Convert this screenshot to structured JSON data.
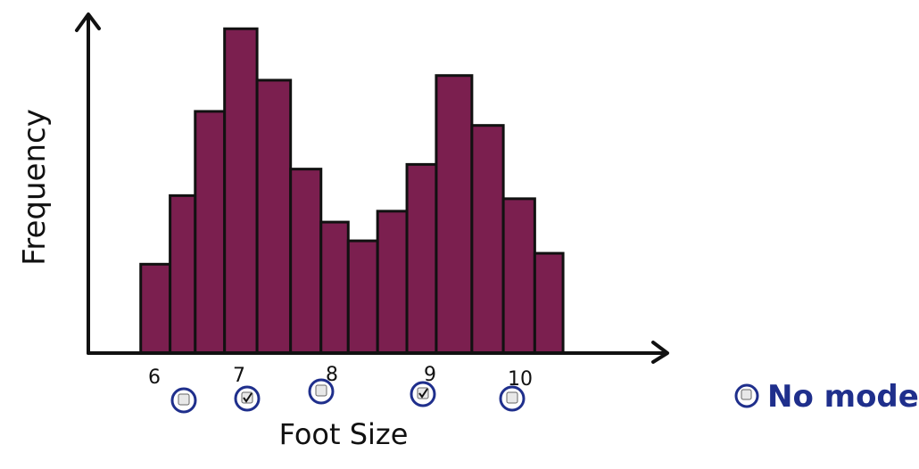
{
  "chart_data": {
    "type": "bar",
    "title": "",
    "xlabel": "Foot Size",
    "ylabel": "Frequency",
    "xlim": [
      5.5,
      11.0
    ],
    "ylim": [
      0,
      215
    ],
    "x_ticks": [
      "6",
      "7",
      "8",
      "9",
      "10"
    ],
    "bar_color": "#7b1f4f",
    "bars": [
      {
        "x_start": 6.0,
        "x_end": 6.28,
        "value": 57
      },
      {
        "x_start": 6.28,
        "x_end": 6.52,
        "value": 101
      },
      {
        "x_start": 6.52,
        "x_end": 6.8,
        "value": 155
      },
      {
        "x_start": 6.8,
        "x_end": 7.11,
        "value": 208
      },
      {
        "x_start": 7.11,
        "x_end": 7.43,
        "value": 175
      },
      {
        "x_start": 7.43,
        "x_end": 7.72,
        "value": 118
      },
      {
        "x_start": 7.72,
        "x_end": 7.98,
        "value": 84
      },
      {
        "x_start": 7.98,
        "x_end": 8.26,
        "value": 72
      },
      {
        "x_start": 8.26,
        "x_end": 8.54,
        "value": 91
      },
      {
        "x_start": 8.54,
        "x_end": 8.82,
        "value": 121
      },
      {
        "x_start": 8.82,
        "x_end": 9.16,
        "value": 178
      },
      {
        "x_start": 9.16,
        "x_end": 9.46,
        "value": 146
      },
      {
        "x_start": 9.46,
        "x_end": 9.76,
        "value": 99
      },
      {
        "x_start": 9.76,
        "x_end": 10.03,
        "value": 64
      }
    ]
  },
  "quiz": {
    "options": [
      {
        "id": "opt-1",
        "checked": false
      },
      {
        "id": "opt-2",
        "checked": true
      },
      {
        "id": "opt-3",
        "checked": false
      },
      {
        "id": "opt-4",
        "checked": true
      },
      {
        "id": "opt-5",
        "checked": false
      }
    ],
    "no_mode": {
      "label": "No mode",
      "checked": false
    },
    "accent_color": "#1f2f8c"
  }
}
